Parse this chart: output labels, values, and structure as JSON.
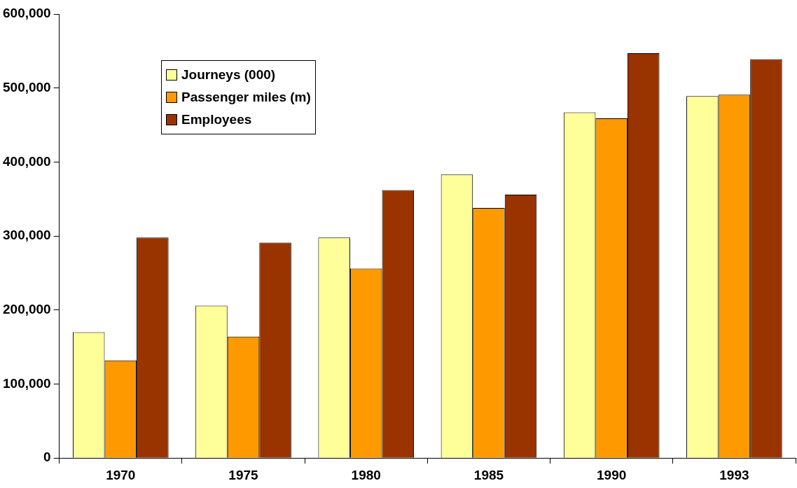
{
  "chart_data": {
    "type": "bar",
    "categories": [
      "1970",
      "1975",
      "1980",
      "1985",
      "1990",
      "1993"
    ],
    "series": [
      {
        "name": "Journeys (000)",
        "color": "#ffff99",
        "values": [
          170000,
          206000,
          298000,
          383000,
          467000,
          489000
        ]
      },
      {
        "name": "Passenger miles (m)",
        "color": "#ff9900",
        "values": [
          132000,
          164000,
          256000,
          338000,
          459000,
          491000
        ]
      },
      {
        "name": "Employees",
        "color": "#993300",
        "values": [
          298000,
          291000,
          362000,
          356000,
          547000,
          539000
        ]
      }
    ],
    "ylim": [
      0,
      600000
    ],
    "yticks": [
      {
        "value": 0,
        "label": "0"
      },
      {
        "value": 100000,
        "label": "100,000"
      },
      {
        "value": 200000,
        "label": "200,000"
      },
      {
        "value": 300000,
        "label": "300,000"
      },
      {
        "value": 400000,
        "label": "400,000"
      },
      {
        "value": 500000,
        "label": "500,000"
      },
      {
        "value": 600000,
        "label": "600,000"
      }
    ],
    "grid": false,
    "legend": "top left"
  }
}
